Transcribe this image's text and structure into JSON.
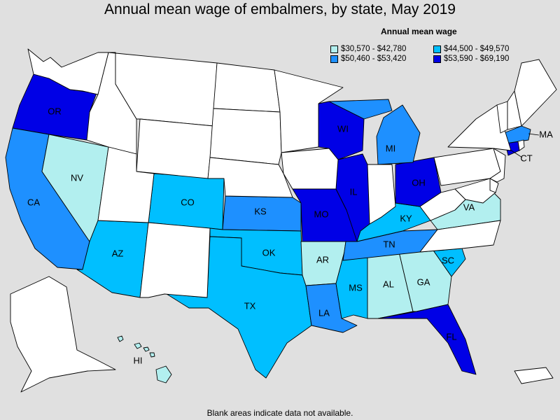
{
  "title": "Annual mean wage of embalmers, by state, May 2019",
  "legend": {
    "title": "Annual mean wage",
    "items": [
      {
        "label": "$30,570 - $42,780",
        "color": "#b2efef"
      },
      {
        "label": "$44,500 - $49,570",
        "color": "#00bfff"
      },
      {
        "label": "$50,460 - $53,420",
        "color": "#1e90ff"
      },
      {
        "label": "$53,590 - $69,190",
        "color": "#0000e6"
      }
    ]
  },
  "footnote": "Blank areas indicate data not available.",
  "colors": {
    "no_data": "#ffffff",
    "background": "#e0e0e0",
    "border": "#000000"
  },
  "states": [
    {
      "name": "OR",
      "label": "OR",
      "bin": 3
    },
    {
      "name": "CA",
      "label": "CA",
      "bin": 2
    },
    {
      "name": "NV",
      "label": "NV",
      "bin": 0
    },
    {
      "name": "AZ",
      "label": "AZ",
      "bin": 1
    },
    {
      "name": "CO",
      "label": "CO",
      "bin": 1
    },
    {
      "name": "KS",
      "label": "KS",
      "bin": 2
    },
    {
      "name": "OK",
      "label": "OK",
      "bin": 1
    },
    {
      "name": "TX",
      "label": "TX",
      "bin": 1
    },
    {
      "name": "MO",
      "label": "MO",
      "bin": 3
    },
    {
      "name": "AR",
      "label": "AR",
      "bin": 0
    },
    {
      "name": "LA",
      "label": "LA",
      "bin": 2
    },
    {
      "name": "MS",
      "label": "MS",
      "bin": 1
    },
    {
      "name": "AL",
      "label": "AL",
      "bin": 0
    },
    {
      "name": "GA",
      "label": "GA",
      "bin": 0
    },
    {
      "name": "FL",
      "label": "FL",
      "bin": 3
    },
    {
      "name": "SC",
      "label": "SC",
      "bin": 1
    },
    {
      "name": "TN",
      "label": "TN",
      "bin": 2
    },
    {
      "name": "KY",
      "label": "KY",
      "bin": 1
    },
    {
      "name": "VA",
      "label": "VA",
      "bin": 0
    },
    {
      "name": "OH",
      "label": "OH",
      "bin": 3
    },
    {
      "name": "MI",
      "label": "MI",
      "bin": 2
    },
    {
      "name": "WI",
      "label": "WI",
      "bin": 3
    },
    {
      "name": "IL",
      "label": "IL",
      "bin": 3
    },
    {
      "name": "CT",
      "label": "CT",
      "bin": 3
    },
    {
      "name": "MA",
      "label": "MA",
      "bin": 2
    },
    {
      "name": "HI",
      "label": "HI",
      "bin": 0
    },
    {
      "name": "WA",
      "label": "",
      "bin": null
    },
    {
      "name": "ID",
      "label": "",
      "bin": null
    },
    {
      "name": "MT",
      "label": "",
      "bin": null
    },
    {
      "name": "WY",
      "label": "",
      "bin": null
    },
    {
      "name": "UT",
      "label": "",
      "bin": null
    },
    {
      "name": "NM",
      "label": "",
      "bin": null
    },
    {
      "name": "ND",
      "label": "",
      "bin": null
    },
    {
      "name": "SD",
      "label": "",
      "bin": null
    },
    {
      "name": "NE",
      "label": "",
      "bin": null
    },
    {
      "name": "MN",
      "label": "",
      "bin": null
    },
    {
      "name": "IA",
      "label": "",
      "bin": null
    },
    {
      "name": "IN",
      "label": "",
      "bin": null
    },
    {
      "name": "WV",
      "label": "",
      "bin": null
    },
    {
      "name": "NC",
      "label": "",
      "bin": null
    },
    {
      "name": "PA",
      "label": "",
      "bin": null
    },
    {
      "name": "NY",
      "label": "",
      "bin": null
    },
    {
      "name": "NJ",
      "label": "",
      "bin": null
    },
    {
      "name": "DE",
      "label": "",
      "bin": null
    },
    {
      "name": "MD",
      "label": "",
      "bin": null
    },
    {
      "name": "VT",
      "label": "",
      "bin": null
    },
    {
      "name": "NH",
      "label": "",
      "bin": null
    },
    {
      "name": "ME",
      "label": "",
      "bin": null
    },
    {
      "name": "RI",
      "label": "",
      "bin": null
    },
    {
      "name": "AK",
      "label": "",
      "bin": null
    },
    {
      "name": "PR",
      "label": "",
      "bin": null
    }
  ]
}
